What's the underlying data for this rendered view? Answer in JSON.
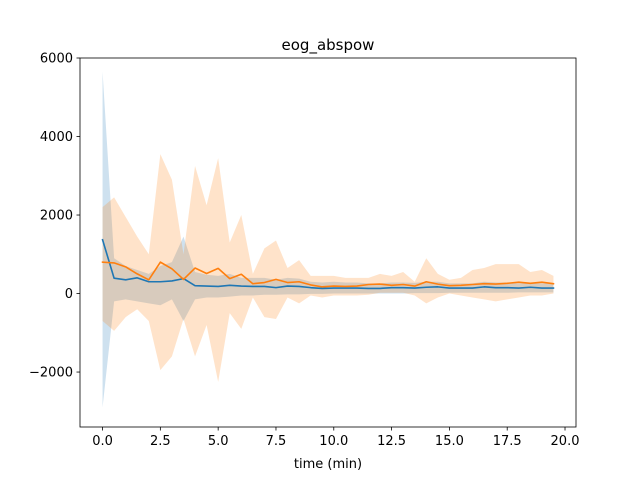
{
  "chart_data": {
    "type": "line",
    "title": "eog_abspow",
    "xlabel": "time (min)",
    "ylabel": "",
    "xlim": [
      -0.975,
      20.475
    ],
    "ylim": [
      -3400,
      6000
    ],
    "grid": false,
    "legend": "none",
    "x_ticks": [
      0.0,
      2.5,
      5.0,
      7.5,
      10.0,
      12.5,
      15.0,
      17.5,
      20.0
    ],
    "x_tick_labels": [
      "0.0",
      "2.5",
      "5.0",
      "7.5",
      "10.0",
      "12.5",
      "15.0",
      "17.5",
      "20.0"
    ],
    "y_ticks": [
      -2000,
      0,
      2000,
      4000,
      6000
    ],
    "y_tick_labels": [
      "−2000",
      "0",
      "2000",
      "4000",
      "6000"
    ],
    "x": [
      0,
      0.5,
      1,
      1.5,
      2,
      2.5,
      3,
      3.5,
      4,
      4.5,
      5,
      5.5,
      6,
      6.5,
      7,
      7.5,
      8,
      8.5,
      9,
      9.5,
      10,
      10.5,
      11,
      11.5,
      12,
      12.5,
      13,
      13.5,
      14,
      14.5,
      15,
      15.5,
      16,
      16.5,
      17,
      17.5,
      18,
      18.5,
      19,
      19.5
    ],
    "series": [
      {
        "color": "#1f77b4",
        "band_color": "#1f77b4",
        "values": [
          1370,
          390,
          350,
          400,
          300,
          300,
          320,
          380,
          200,
          190,
          180,
          210,
          190,
          180,
          180,
          150,
          190,
          180,
          150,
          130,
          140,
          140,
          140,
          130,
          130,
          150,
          150,
          140,
          160,
          170,
          140,
          140,
          140,
          170,
          150,
          150,
          140,
          160,
          140,
          140
        ],
        "lower": [
          -2900,
          -200,
          -150,
          -200,
          -250,
          -300,
          -150,
          -700,
          -150,
          -100,
          -100,
          -80,
          -50,
          -50,
          -30,
          -30,
          -20,
          -20,
          -10,
          -10,
          0,
          0,
          0,
          0,
          0,
          0,
          0,
          10,
          10,
          10,
          20,
          20,
          20,
          20,
          20,
          20,
          30,
          30,
          30,
          30
        ],
        "upper": [
          5650,
          900,
          700,
          600,
          500,
          700,
          800,
          1450,
          550,
          480,
          450,
          500,
          400,
          400,
          400,
          350,
          400,
          380,
          300,
          280,
          300,
          280,
          280,
          260,
          260,
          280,
          280,
          270,
          300,
          300,
          260,
          260,
          260,
          300,
          280,
          280,
          260,
          280,
          260,
          260
        ]
      },
      {
        "color": "#ff7f0e",
        "band_color": "#ff7f0e",
        "values": [
          800,
          780,
          680,
          500,
          350,
          800,
          630,
          360,
          650,
          510,
          640,
          380,
          490,
          250,
          280,
          360,
          280,
          300,
          220,
          170,
          190,
          180,
          190,
          230,
          240,
          210,
          230,
          190,
          300,
          240,
          200,
          210,
          230,
          250,
          240,
          260,
          290,
          260,
          290,
          250
        ],
        "lower": [
          -700,
          -950,
          -600,
          -400,
          -700,
          -1950,
          -1600,
          -650,
          -1600,
          -800,
          -2250,
          -500,
          -900,
          -100,
          -600,
          -650,
          -100,
          -250,
          -50,
          -100,
          -50,
          -50,
          -50,
          -30,
          20,
          20,
          20,
          -50,
          -250,
          -100,
          0,
          -50,
          -100,
          -150,
          -200,
          -150,
          -100,
          -50,
          -50,
          0
        ],
        "upper": [
          2200,
          2450,
          1950,
          1450,
          1000,
          3550,
          2900,
          1000,
          3250,
          2250,
          3450,
          1300,
          2000,
          500,
          1150,
          1350,
          650,
          850,
          450,
          450,
          450,
          400,
          400,
          400,
          500,
          450,
          550,
          300,
          900,
          500,
          350,
          400,
          600,
          650,
          750,
          750,
          750,
          550,
          600,
          450
        ]
      }
    ]
  }
}
